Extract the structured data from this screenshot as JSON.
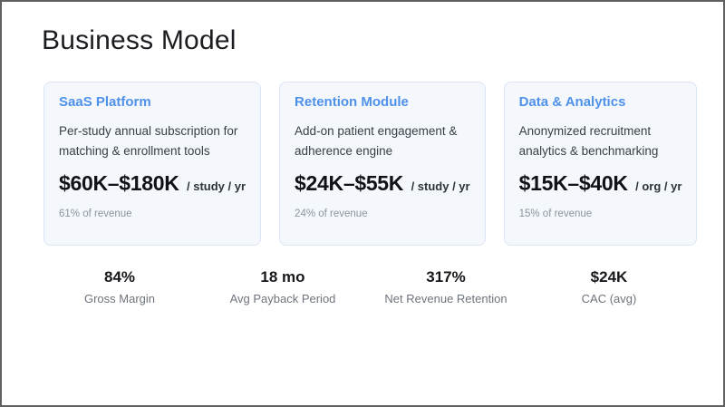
{
  "title": "Business Model",
  "colors": {
    "accent_blue": "#4f91e8",
    "card_background": "#f4f8fd",
    "card_border": "#dbe5f3",
    "muted_gray": "#8d939d",
    "frame_border": "#606060"
  },
  "cards": [
    {
      "heading": "SaaS Platform",
      "description": "Per-study annual subscription for matching & enrollment tools",
      "price": "$60K–$180K",
      "unit": "/ study / yr",
      "share": "61% of revenue"
    },
    {
      "heading": "Retention Module",
      "description": "Add-on patient engagement & adherence engine",
      "price": "$24K–$55K",
      "unit": "/ study / yr",
      "share": "24% of revenue"
    },
    {
      "heading": "Data & Analytics",
      "description": "Anonymized recruitment analytics & benchmarking",
      "price": "$15K–$40K",
      "unit": "/ org / yr",
      "share": "15% of revenue"
    }
  ],
  "metrics": [
    {
      "value": "84%",
      "label": "Gross Margin"
    },
    {
      "value": "18 mo",
      "label": "Avg Payback Period"
    },
    {
      "value": "317%",
      "label": "Net Revenue Retention"
    },
    {
      "value": "$24K",
      "label": "CAC (avg)"
    }
  ]
}
